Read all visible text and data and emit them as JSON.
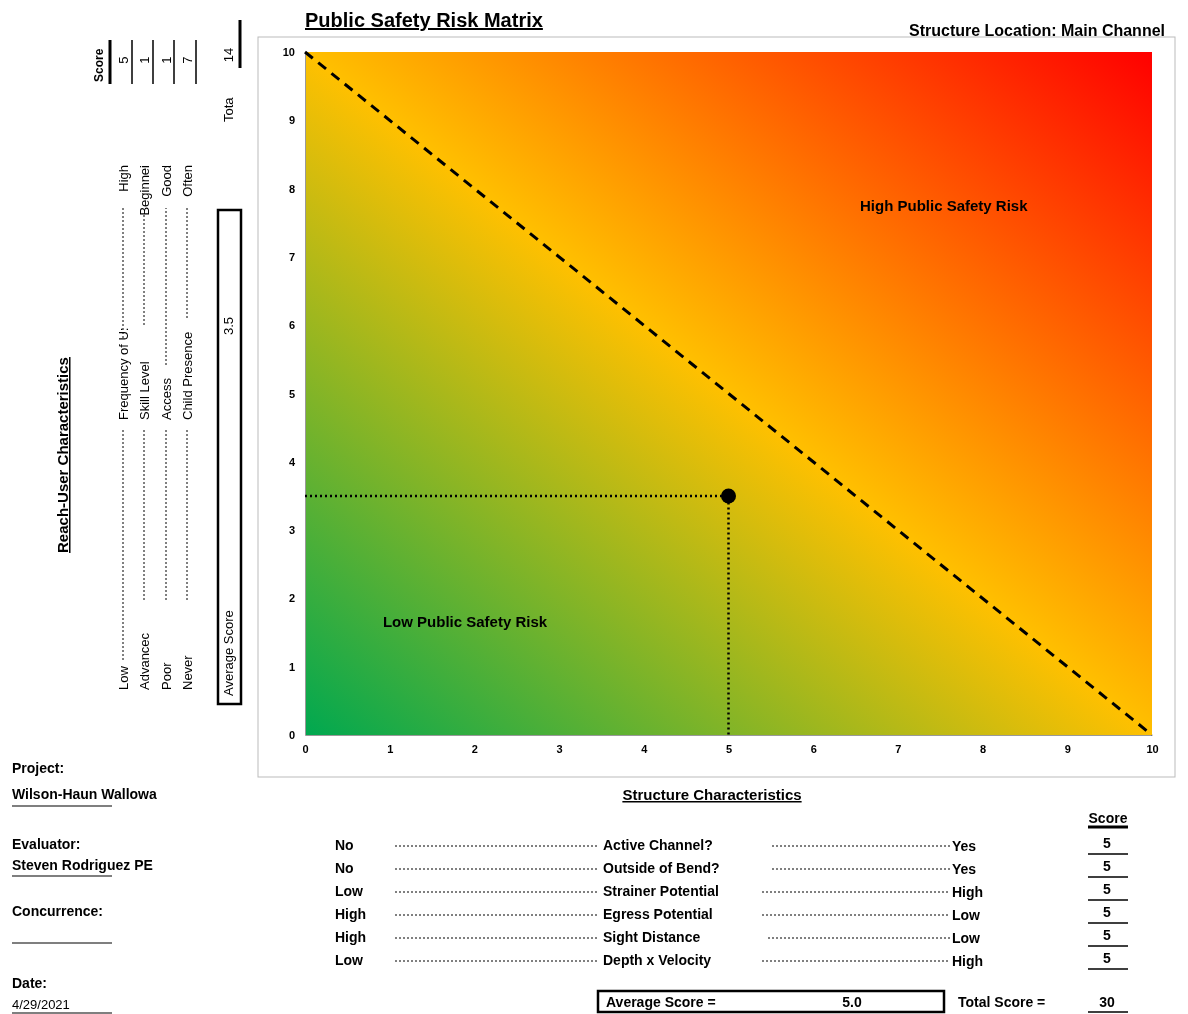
{
  "chart_data": {
    "type": "scatter",
    "title": "Public Safety Risk Matrix",
    "subtitle": "Structure Location: Main Channel",
    "xlabel": "Structure Characteristics",
    "xlim": [
      0,
      10
    ],
    "ylim": [
      0,
      10
    ],
    "xticks": [
      0,
      1,
      2,
      3,
      4,
      5,
      6,
      7,
      8,
      9,
      10
    ],
    "yticks": [
      0,
      1,
      2,
      3,
      4,
      5,
      6,
      7,
      8,
      9,
      10
    ],
    "series": [
      {
        "type": "line",
        "x": [
          0,
          10
        ],
        "values": [
          10,
          0
        ],
        "color": "#000000",
        "line_style": "dashed"
      },
      {
        "type": "line",
        "x": [
          0,
          5,
          5
        ],
        "values": [
          3.5,
          3.5,
          0
        ],
        "color": "#000000",
        "line_style": "dotted"
      },
      {
        "x": [
          5
        ],
        "values": [
          3.5
        ],
        "color": "#000000",
        "marker": "circle"
      }
    ],
    "annotations": [
      "High Public Safety Risk",
      "Low Public Safety Risk",
      "Low",
      "Frequency of U:",
      "High",
      "Advancec",
      "Skill Level",
      "Beginnei",
      "Poor",
      "Access",
      "Good",
      "Never",
      "Child Presence",
      "Often",
      "Score",
      "5",
      "1",
      "1",
      "7",
      "Tota",
      "14",
      "Average Score",
      "3.5",
      "Project:",
      "Wilson-Haun Wallowa",
      "Evaluator:",
      "Steven Rodriguez PE",
      "Concurrence:",
      "Date:",
      "4/29/2021",
      "Score",
      "No",
      "Active Channel?",
      "Yes",
      "5",
      "No",
      "Outside of Bend?",
      "Yes",
      "5",
      "Low",
      "Strainer Potential",
      "High",
      "5",
      "High",
      "Egress Potential",
      "Low",
      "5",
      "High",
      "Sight Distance",
      "Low",
      "5",
      "Low",
      "Depth x Velocity",
      "High",
      "5",
      "Average Score =",
      "5.0",
      "Total Score =",
      "30",
      "Reach-User Characteristics"
    ]
  }
}
